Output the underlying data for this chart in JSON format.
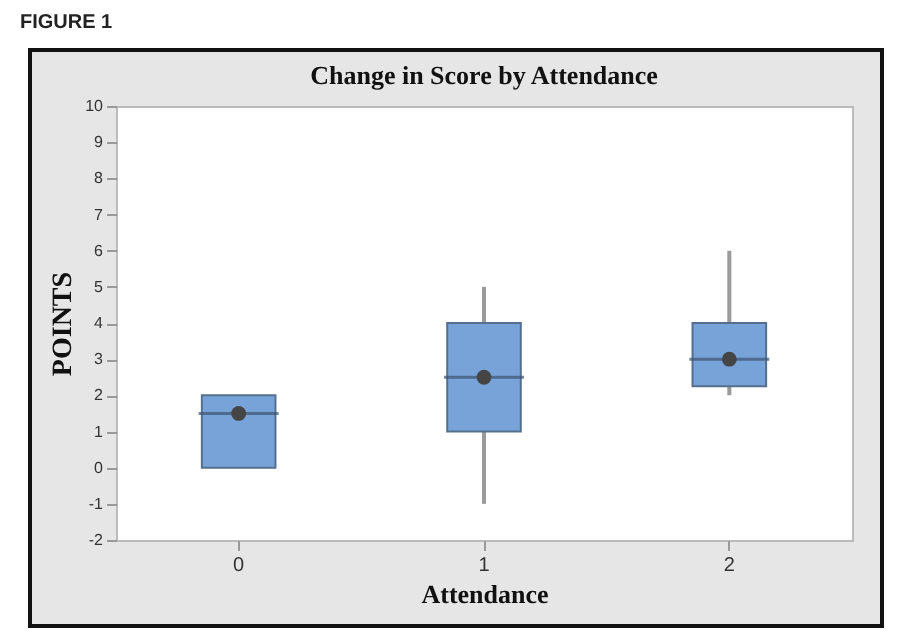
{
  "chart_data": {
    "type": "box",
    "title": "Change in Score by Attendance",
    "xlabel": "Attendance",
    "ylabel": "POINTS",
    "annotations": [
      "FIGURE 1"
    ],
    "categories": [
      "0",
      "1",
      "2"
    ],
    "color": "#77a3d8",
    "boxes": [
      {
        "low": 0,
        "q1": 0,
        "median": 1.5,
        "q3": 2,
        "high": 2,
        "mean": 1.5
      },
      {
        "low": -1,
        "q1": 1,
        "median": 2.5,
        "q3": 4,
        "high": 5,
        "mean": 2.5
      },
      {
        "low": 2,
        "q1": 2.25,
        "median": 3,
        "q3": 4,
        "high": 6,
        "mean": 3
      }
    ],
    "ylim": [
      -2,
      10
    ],
    "yticks": [
      -2,
      -1,
      0,
      1,
      2,
      3,
      4,
      5,
      6,
      7,
      8,
      9,
      10
    ]
  }
}
